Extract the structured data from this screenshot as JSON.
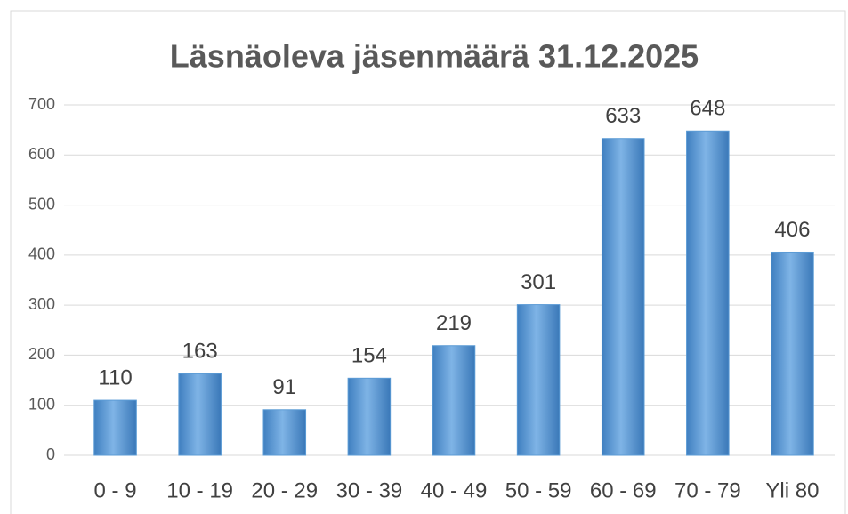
{
  "chart_data": {
    "type": "bar",
    "title": "Läsnäoleva jäsenmäärä 31.12.2025",
    "categories": [
      "0 - 9",
      "10 - 19",
      "20 - 29",
      "30 - 39",
      "40 - 49",
      "50 - 59",
      "60 - 69",
      "70 - 79",
      "Yli 80"
    ],
    "values": [
      110,
      163,
      91,
      154,
      219,
      301,
      633,
      648,
      406
    ],
    "color": "#5b9bd5",
    "ylim": [
      0,
      700
    ],
    "yticks": [
      0,
      100,
      200,
      300,
      400,
      500,
      600,
      700
    ],
    "grid": true
  }
}
